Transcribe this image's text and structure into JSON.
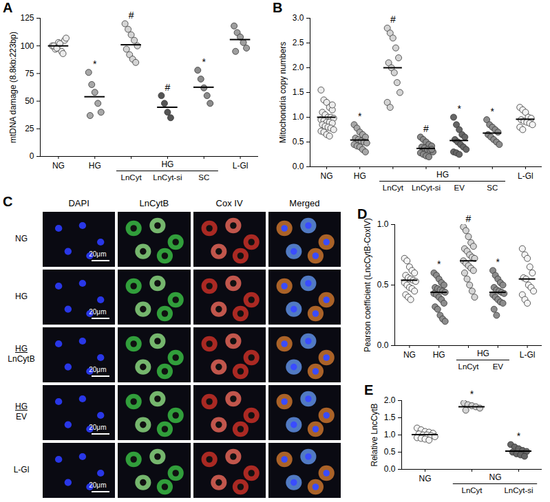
{
  "chart_data": [
    {
      "type": "scatter",
      "panel": "A",
      "y_label": "mtDNA damage (8.8kb:223bp)",
      "categories": [
        "NG",
        "HG",
        "LnCyt",
        "LnCyt-si",
        "SC",
        "L-Gl"
      ],
      "groups": [
        {
          "label": "HG",
          "members": [
            "LnCyt",
            "LnCyt-si",
            "SC"
          ]
        }
      ],
      "values": [
        [
          100,
          97,
          103,
          95,
          105,
          100,
          98,
          102,
          93,
          107
        ],
        [
          76,
          65,
          58,
          48,
          40,
          37
        ],
        [
          120,
          115,
          110,
          105,
          100,
          97,
          92,
          88,
          85
        ],
        [
          55,
          48,
          40,
          35
        ],
        [
          78,
          70,
          62,
          55,
          48
        ],
        [
          118,
          112,
          108,
          103,
          98,
          95
        ]
      ],
      "means": [
        100,
        54,
        101,
        44.5,
        62.6,
        105.7
      ],
      "annotations": [
        null,
        "*",
        "#",
        "#",
        "*",
        null
      ],
      "colors": [
        "#ececec",
        "#a8a8a8",
        "#d4d4d4",
        "#555555",
        "#8c8c8c",
        "#9e9e9e"
      ],
      "ylim": [
        0,
        125
      ],
      "yticks": [
        0,
        25,
        50,
        75,
        100,
        125
      ]
    },
    {
      "type": "scatter",
      "panel": "B",
      "y_label": "Mitochondria copy numbers",
      "categories": [
        "NG",
        "HG",
        "LnCyt",
        "LnCyt-si",
        "EV",
        "SC",
        "L-Gl"
      ],
      "groups": [
        {
          "label": "HG",
          "members": [
            "LnCyt",
            "LnCyt-si",
            "EV",
            "SC"
          ]
        }
      ],
      "values": [
        [
          1.55,
          1.35,
          1.3,
          1.2,
          1.15,
          1.1,
          1.05,
          1.0,
          1.0,
          0.98,
          0.95,
          0.93,
          0.9,
          0.9,
          0.88,
          0.85,
          0.82,
          0.8,
          0.78,
          0.75,
          0.72,
          0.7,
          0.65,
          0.62,
          1.25
        ],
        [
          0.85,
          0.78,
          0.7,
          0.65,
          0.6,
          0.58,
          0.55,
          0.52,
          0.5,
          0.48,
          0.45,
          0.42,
          0.4,
          0.35,
          0.3
        ],
        [
          2.8,
          2.7,
          2.6,
          2.4,
          2.2,
          2.1,
          2.0,
          1.9,
          1.7,
          1.5,
          1.3,
          1.2
        ],
        [
          0.6,
          0.55,
          0.5,
          0.45,
          0.42,
          0.4,
          0.38,
          0.35,
          0.33,
          0.3,
          0.28,
          0.25,
          0.22,
          0.2,
          0.35
        ],
        [
          1.0,
          0.85,
          0.75,
          0.65,
          0.6,
          0.55,
          0.5,
          0.45,
          0.4,
          0.35,
          0.3,
          0.28,
          0.25
        ],
        [
          0.95,
          0.85,
          0.8,
          0.75,
          0.7,
          0.65,
          0.6,
          0.55,
          0.5,
          0.45
        ],
        [
          1.2,
          1.15,
          1.1,
          1.0,
          0.98,
          0.95,
          0.92,
          0.9,
          0.88,
          0.85,
          0.8,
          0.75
        ]
      ],
      "means": [
        1.0,
        0.54,
        2.0,
        0.37,
        0.53,
        0.68,
        0.96
      ],
      "annotations": [
        null,
        "*",
        "#",
        "#",
        "*",
        "*",
        null
      ],
      "colors": [
        "#ececec",
        "#a8a8a8",
        "#d4d4d4",
        "#8a8a8a",
        "#666666",
        "#8c8c8c",
        "#f4f4f4"
      ],
      "ylim": [
        0,
        3
      ],
      "yticks": [
        {
          "value": 0,
          "label": "0.0"
        },
        0.5,
        {
          "value": 1,
          "label": "1.0"
        },
        1.5,
        {
          "value": 2,
          "label": "2.0"
        },
        2.5,
        {
          "value": 3,
          "label": "3.0"
        }
      ]
    },
    {
      "type": "image_grid",
      "panel": "C",
      "columns": [
        "DAPI",
        "LnCytB",
        "Cox IV",
        "Merged"
      ],
      "rows": [
        [
          "NG"
        ],
        [
          "HG"
        ],
        [
          "HG",
          "LnCytB"
        ],
        [
          "HG",
          "EV"
        ],
        [
          "L-Gl"
        ]
      ],
      "scale_bar": "20μm"
    },
    {
      "type": "scatter",
      "panel": "D",
      "y_label": "Pearson coefficient (LncCytB-CoxIV)",
      "categories": [
        "NG",
        "HG",
        "LnCyt",
        "EV",
        "L-Gl"
      ],
      "groups": [
        {
          "label": "HG",
          "members": [
            "LnCyt",
            "EV"
          ]
        }
      ],
      "values": [
        [
          0.72,
          0.7,
          0.65,
          0.62,
          0.6,
          0.58,
          0.56,
          0.55,
          0.54,
          0.53,
          0.52,
          0.5,
          0.48,
          0.47,
          0.45,
          0.42,
          0.4,
          0.38
        ],
        [
          0.6,
          0.58,
          0.55,
          0.52,
          0.5,
          0.48,
          0.47,
          0.46,
          0.45,
          0.44,
          0.43,
          0.42,
          0.4,
          0.38,
          0.35,
          0.32,
          0.3,
          0.25,
          0.22,
          0.2
        ],
        [
          0.98,
          0.95,
          0.9,
          0.85,
          0.82,
          0.8,
          0.78,
          0.75,
          0.73,
          0.72,
          0.7,
          0.68,
          0.66,
          0.64,
          0.62,
          0.6,
          0.55,
          0.5,
          0.45,
          0.4
        ],
        [
          0.62,
          0.58,
          0.55,
          0.52,
          0.5,
          0.48,
          0.46,
          0.45,
          0.44,
          0.43,
          0.42,
          0.4,
          0.38,
          0.36,
          0.35,
          0.3,
          0.25
        ],
        [
          0.8,
          0.75,
          0.72,
          0.65,
          0.6,
          0.56,
          0.55,
          0.5,
          0.48,
          0.45,
          0.42,
          0.38,
          0.35
        ]
      ],
      "means": [
        0.54,
        0.44,
        0.7,
        0.44,
        0.55
      ],
      "annotations": [
        null,
        "*",
        "#",
        "*",
        null
      ],
      "colors": [
        "#f4f4f4",
        "#8c8c8c",
        "#d4d4d4",
        "#8c8c8c",
        "#f4f4f4"
      ],
      "ylim": [
        0,
        1
      ],
      "yticks": [
        {
          "value": 0,
          "label": "0.0"
        },
        0.5,
        {
          "value": 1,
          "label": "1.0"
        }
      ]
    },
    {
      "type": "scatter",
      "panel": "E",
      "y_label": "Relative LncCytB",
      "categories": [
        "NG",
        "LnCyt",
        "LnCyt-si"
      ],
      "groups": [
        {
          "label": "NG",
          "members": [
            "LnCyt",
            "LnCyt-si"
          ]
        }
      ],
      "values": [
        [
          1.2,
          1.15,
          1.1,
          1.08,
          1.05,
          1.03,
          1.0,
          1.0,
          0.98,
          0.95,
          0.92,
          0.9,
          0.88,
          0.85
        ],
        [
          1.93,
          1.88,
          1.85,
          1.82,
          1.78,
          1.72
        ],
        [
          0.72,
          0.65,
          0.6,
          0.55,
          0.52,
          0.5,
          0.45,
          0.42,
          0.38
        ]
      ],
      "means": [
        1.01,
        1.82,
        0.53
      ],
      "annotations": [
        null,
        "*",
        "*"
      ],
      "colors": [
        "#f4f4f4",
        "#d4d4d4",
        "#666666"
      ],
      "ylim": [
        0,
        2
      ],
      "yticks": [
        {
          "value": 0,
          "label": "0.0"
        },
        0.5,
        {
          "value": 1,
          "label": "1.0"
        },
        1.5,
        {
          "value": 2,
          "label": "2.0"
        }
      ]
    }
  ]
}
